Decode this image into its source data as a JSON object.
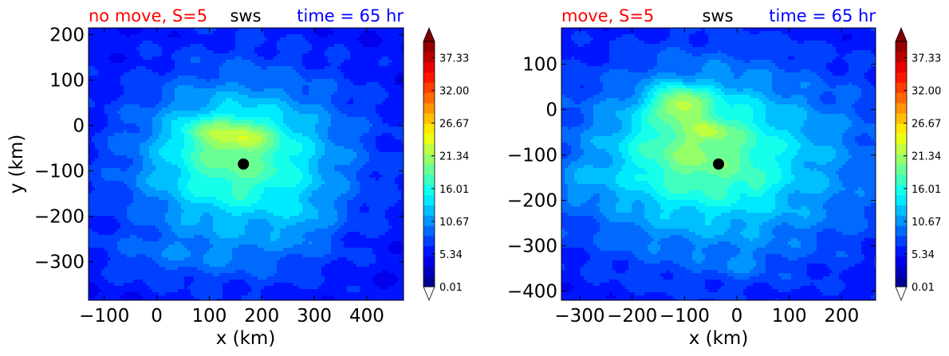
{
  "chart_data": [
    {
      "type": "heatmap",
      "title_left": "no move, S=5",
      "title_center": "sws",
      "title_right": "time = 65 hr",
      "title_left_color": "#ff0000",
      "title_center_color": "#000000",
      "title_right_color": "#0000ff",
      "xlabel": "x (km)",
      "ylabel": "y (km)",
      "xlim": [
        -130,
        470
      ],
      "ylim": [
        -385,
        215
      ],
      "xticks": [
        -100,
        0,
        100,
        200,
        300,
        400
      ],
      "xtick_labels": [
        "−100",
        "0",
        "100",
        "200",
        "300",
        "400"
      ],
      "yticks": [
        200,
        100,
        0,
        -100,
        -200,
        -300
      ],
      "ytick_labels": [
        "200",
        "100",
        "0",
        "−100",
        "−200",
        "−300"
      ],
      "center_marker": {
        "x": 165,
        "y": -85
      },
      "field": {
        "background": 5,
        "blobs": [
          {
            "x": 165,
            "y": -85,
            "rx": 230,
            "ry": 215,
            "amp": 8
          },
          {
            "x": 150,
            "y": -70,
            "rx": 150,
            "ry": 125,
            "amp": 6
          },
          {
            "x": 140,
            "y": -20,
            "rx": 75,
            "ry": 35,
            "amp": 5
          },
          {
            "x": 80,
            "y": -10,
            "rx": 30,
            "ry": 22,
            "amp": 2
          },
          {
            "x": 170,
            "y": -30,
            "rx": 35,
            "ry": 20,
            "amp": 1.5
          },
          {
            "x": 30,
            "y": -290,
            "rx": 200,
            "ry": 55,
            "amp": 2
          },
          {
            "x": 280,
            "y": -210,
            "rx": 50,
            "ry": 65,
            "amp": 2
          }
        ]
      },
      "colorbar": {
        "min": 0.01,
        "max": 40,
        "tick_labels": [
          "37.33",
          "32.00",
          "26.67",
          "21.34",
          "16.01",
          "10.67",
          "5.34",
          "0.01"
        ],
        "tick_values": [
          37.33,
          32.0,
          26.67,
          21.34,
          16.01,
          10.67,
          5.34,
          0.01
        ],
        "extend": "both"
      }
    },
    {
      "type": "heatmap",
      "title_left": "move, S=5",
      "title_center": "sws",
      "title_right": "time = 65 hr",
      "title_left_color": "#ff0000",
      "title_center_color": "#000000",
      "title_right_color": "#0000ff",
      "xlabel": "x (km)",
      "ylabel": "",
      "xlim": [
        -335,
        265
      ],
      "ylim": [
        -420,
        180
      ],
      "xticks": [
        -300,
        -200,
        -100,
        0,
        100,
        200
      ],
      "xtick_labels": [
        "−300",
        "−200",
        "−100",
        "0",
        "100",
        "200"
      ],
      "yticks": [
        100,
        0,
        -100,
        -200,
        -300,
        -400
      ],
      "ytick_labels": [
        "100",
        "0",
        "−100",
        "−200",
        "−300",
        "−400"
      ],
      "center_marker": {
        "x": -35,
        "y": -120
      },
      "field": {
        "background": 5,
        "blobs": [
          {
            "x": -35,
            "y": -120,
            "rx": 300,
            "ry": 220,
            "amp": 10
          },
          {
            "x": -80,
            "y": -70,
            "rx": 130,
            "ry": 120,
            "amp": 6
          },
          {
            "x": -110,
            "y": 15,
            "rx": 50,
            "ry": 35,
            "amp": 8
          },
          {
            "x": -50,
            "y": -45,
            "rx": 30,
            "ry": 18,
            "amp": 3
          },
          {
            "x": 35,
            "y": -165,
            "rx": 20,
            "ry": 22,
            "amp": 3
          },
          {
            "x": -300,
            "y": -160,
            "rx": 60,
            "ry": 35,
            "amp": 2
          },
          {
            "x": 10,
            "y": -340,
            "rx": 45,
            "ry": 25,
            "amp": 2
          }
        ]
      },
      "colorbar": {
        "min": 0.01,
        "max": 40,
        "tick_labels": [
          "37.33",
          "32.00",
          "26.67",
          "21.34",
          "16.01",
          "10.67",
          "5.34",
          "0.01"
        ],
        "tick_values": [
          37.33,
          32.0,
          26.67,
          21.34,
          16.01,
          10.67,
          5.34,
          0.01
        ],
        "extend": "both"
      }
    }
  ]
}
